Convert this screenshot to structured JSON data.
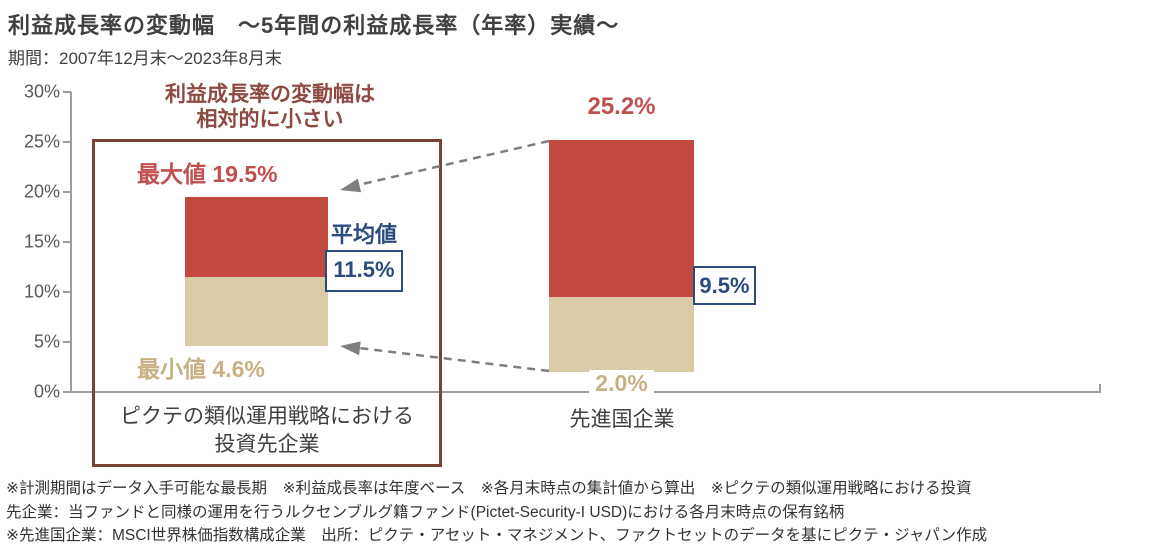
{
  "header": {
    "title": "利益成長率の変動幅　～5年間の利益成長率（年率）実績～",
    "period": "期間：2007年12月末～2023年8月末"
  },
  "chart_data": {
    "type": "bar",
    "subtype": "floating-range-bars",
    "title": "利益成長率の変動幅 ～5年間の利益成長率（年率）実績～",
    "categories": [
      "ピクテの類似運用戦略における投資先企業",
      "先進国企業"
    ],
    "series": [
      {
        "name": "最小値",
        "values": [
          4.6,
          2.0
        ]
      },
      {
        "name": "平均値",
        "values": [
          11.5,
          9.5
        ]
      },
      {
        "name": "最大値",
        "values": [
          19.5,
          25.2
        ]
      }
    ],
    "ylabel": "",
    "xlabel": "",
    "ylim": [
      0,
      30
    ],
    "ytick_step": 5,
    "yticklabels": [
      "0%",
      "5%",
      "10%",
      "15%",
      "20%",
      "25%",
      "30%"
    ],
    "grid": false,
    "legend": "none"
  },
  "annotation": {
    "line1": "利益成長率の変動幅は",
    "line2": "相対的に小さい"
  },
  "labels": {
    "left_max": "最大値 19.5%",
    "left_avg_title": "平均値",
    "left_avg_value": "11.5%",
    "left_min": "最小値  4.6%",
    "right_max": "25.2%",
    "right_avg_value": "9.5%",
    "right_min": "2.0%",
    "cat_left_line1": "ピクテの類似運用戦略における",
    "cat_left_line2": "投資先企業",
    "cat_right": "先進国企業"
  },
  "footnotes": {
    "line1": "※計測期間はデータ入手可能な最長期　※利益成長率は年度ベース　※各月末時点の集計値から算出　※ピクテの類似運用戦略における投資",
    "line2": "先企業：当ファンドと同様の運用を行うルクセンブルグ籍ファンド(Pictet-Security-I USD)における各月末時点の保有銘柄",
    "line3": "※先進国企業：MSCI世界株価指数構成企業　出所：ピクテ・アセット・マネジメント、ファクトセットのデータを基にピクテ・ジャパン作成"
  },
  "colors": {
    "max_bar": "#C2493F",
    "min_bar": "#D9CBA6",
    "accent_red": "#C0504D",
    "accent_tan": "#C7B184",
    "accent_blue": "#2B4A80",
    "box_maroon": "#7B4238",
    "annotation_red": "#8E4A42",
    "axis_gray": "#9D9D9D",
    "axis_text": "#595959",
    "text_dark": "#404040",
    "arrow_gray": "#7F7F7F"
  }
}
